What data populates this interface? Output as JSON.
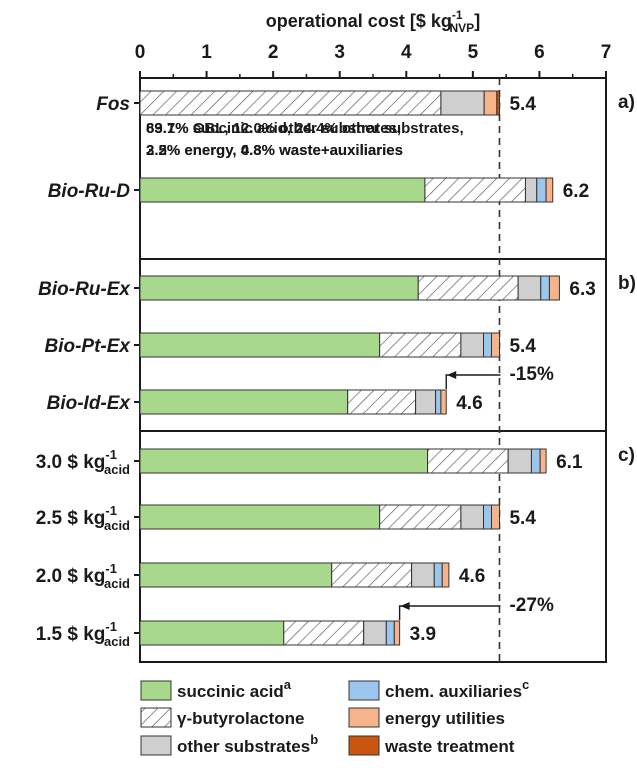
{
  "chart_data": {
    "type": "bar",
    "orientation": "horizontal",
    "stacked": true,
    "title": "",
    "xlabel": "operational cost [$ kg",
    "xlabel_sup": "-1",
    "xlabel_sub": "NVP",
    "xlabel_close": "]",
    "xlim": [
      0,
      7
    ],
    "xticks": [
      "0",
      "1",
      "2",
      "3",
      "4",
      "5",
      "6",
      "7"
    ],
    "reference_line": 5.4,
    "series": [
      {
        "name": "succinic acid",
        "sup": "a",
        "color": "#a8d88c",
        "pattern": "solid"
      },
      {
        "name": "γ-butyrolactone",
        "sup": "",
        "color": "#ffffff",
        "pattern": "hatch"
      },
      {
        "name": "other substrates",
        "sup": "b",
        "color": "#cfcfcf",
        "pattern": "solid"
      },
      {
        "name": "chem. auxiliaries",
        "sup": "c",
        "color": "#9cc7ec",
        "pattern": "solid"
      },
      {
        "name": "energy utilities",
        "sup": "",
        "color": "#f7b48a",
        "pattern": "solid"
      },
      {
        "name": "waste treatment",
        "sup": "",
        "color": "#c9560f",
        "pattern": "solid"
      }
    ],
    "groups": [
      {
        "label": "a)",
        "rows": [
          {
            "label": "Fos",
            "italic": true,
            "total": "5.4",
            "values": [
              0,
              4.52,
              0.65,
              0,
              0.19,
              0.04
            ],
            "note": [
              "83.7% GBL, 12.0% other substrates,",
              "3.5% energy, 0.8% waste+auxiliaries"
            ]
          },
          {
            "label": "Bio-Ru-D",
            "italic": true,
            "total": "6.2",
            "values": [
              4.28,
              1.51,
              0.17,
              0.14,
              0.1,
              0
            ],
            "note": [
              "69.1% succinic acid, 24.4% other substrates,",
              "2.2% energy, 4.3% waste+auxiliaries"
            ]
          }
        ]
      },
      {
        "label": "b)",
        "rows": [
          {
            "label": "Bio-Ru-Ex",
            "italic": true,
            "total": "6.3",
            "values": [
              4.18,
              1.5,
              0.34,
              0.13,
              0.15,
              0
            ]
          },
          {
            "label": "Bio-Pt-Ex",
            "italic": true,
            "total": "5.4",
            "values": [
              3.6,
              1.22,
              0.34,
              0.12,
              0.12,
              0
            ]
          },
          {
            "label": "Bio-Id-Ex",
            "italic": true,
            "total": "4.6",
            "values": [
              3.12,
              1.02,
              0.3,
              0.08,
              0.08,
              0
            ]
          }
        ]
      },
      {
        "label": "c)",
        "rows": [
          {
            "label": "3.0 $ kg",
            "sup": "-1",
            "sub": "acid",
            "italic": false,
            "total": "6.1",
            "values": [
              4.32,
              1.21,
              0.35,
              0.13,
              0.09,
              0
            ]
          },
          {
            "label": "2.5 $ kg",
            "sup": "-1",
            "sub": "acid",
            "italic": false,
            "total": "5.4",
            "values": [
              3.6,
              1.22,
              0.34,
              0.12,
              0.12,
              0
            ]
          },
          {
            "label": "2.0 $ kg",
            "sup": "-1",
            "sub": "acid",
            "italic": false,
            "total": "4.6",
            "values": [
              2.88,
              1.2,
              0.34,
              0.12,
              0.1,
              0
            ]
          },
          {
            "label": "1.5 $ kg",
            "sup": "-1",
            "sub": "acid",
            "italic": false,
            "total": "3.9",
            "values": [
              2.16,
              1.2,
              0.34,
              0.12,
              0.08,
              0
            ]
          }
        ]
      }
    ],
    "annotations": [
      {
        "text": "-15%",
        "from": 5.4,
        "to": 4.6,
        "group": 1
      },
      {
        "text": "-27%",
        "from": 5.4,
        "to": 3.9,
        "group": 2
      }
    ]
  }
}
